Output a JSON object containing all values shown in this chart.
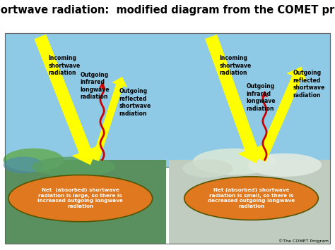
{
  "title": "Net shortwave radiation:  modified diagram from the COMET program",
  "title_fontsize": 10.5,
  "title_fontweight": "bold",
  "bg_color": "#ffffff",
  "sky_color": "#87CEEB",
  "ground_left_color": "#5a8f5a",
  "ground_right_color": "#c8d4c0",
  "arrow_yellow": "#FFFF00",
  "arrow_red": "#CC0000",
  "ellipse_left_color": "#E07820",
  "ellipse_left_edge": "#555500",
  "ellipse_right_color": "#E07820",
  "ellipse_right_edge": "#555500",
  "ellipse_left_text": "Net  (absorbed) shortwave\nradiation is large, so there is\nincreased outgoing longwave\nradiation",
  "ellipse_right_text": "Net (absorbed) shortwave\nradiation is small, so there is\ndecreased outgoing longwave\nradiation",
  "label_incoming_left": "Incoming\nshortwave\nradiation",
  "label_outgoing_infrared_left": "Outgoing\ninfrared\nlongwave\nradiation",
  "label_outgoing_reflected_left": "Outgoing\nreflected\nshortwave\nradiation",
  "label_incoming_right": "Incoming\nshortwave\nradiation",
  "label_outgoing_infrared_right": "Outgoing\ninfrared\nlongwave\nradiation",
  "label_outgoing_reflected_right": "Outgoing\nreflected\nshortwave\nradiation",
  "copyright": "©The COMET Program",
  "figsize": [
    4.74,
    3.55
  ],
  "dpi": 100
}
